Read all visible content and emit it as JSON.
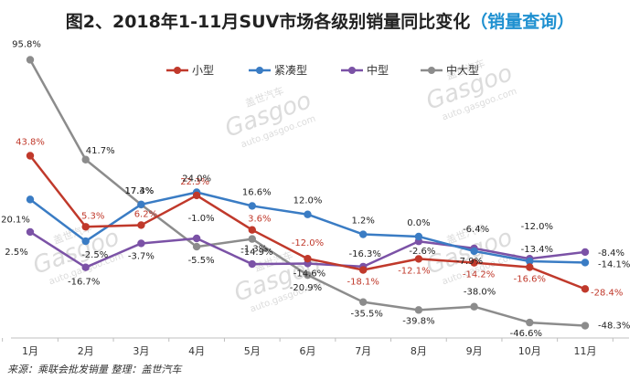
{
  "chart_data": {
    "type": "line",
    "title": "图2、2018年1-11月SUV市场各级别销量同比变化",
    "title_link": "（销量查询）",
    "categories": [
      "1月",
      "2月",
      "3月",
      "4月",
      "5月",
      "6月",
      "7月",
      "8月",
      "9月",
      "10月",
      "11月"
    ],
    "ylim": [
      -52,
      100
    ],
    "grid": false,
    "legend_position": "top",
    "series": [
      {
        "name": "小型",
        "color": "#c0392b",
        "values": [
          43.8,
          5.3,
          6.2,
          22.3,
          3.6,
          -12.0,
          -18.1,
          -12.1,
          -14.2,
          -16.6,
          -28.4
        ],
        "labels": [
          "43.8%",
          "5.3%",
          "6.2%",
          "22.3%",
          "3.6%",
          "-12.0%",
          "-18.1%",
          "-12.1%",
          "-14.2%",
          "-16.6%",
          "-28.4%"
        ]
      },
      {
        "name": "紧凑型",
        "color": "#3a7cc4",
        "values": [
          20.1,
          -2.5,
          17.4,
          24.0,
          16.6,
          12.0,
          1.2,
          0.0,
          -7.9,
          -13.4,
          -14.1
        ],
        "labels": [
          "20.1%",
          "-2.5%",
          "17.4%",
          "24.0%",
          "16.6%",
          "12.0%",
          "1.2%",
          "0.0%",
          "-7.9%",
          "-13.4%",
          "-14.1%"
        ]
      },
      {
        "name": "中型",
        "color": "#7b52a6",
        "values": [
          2.5,
          -16.7,
          -3.7,
          -1.0,
          -14.9,
          -14.6,
          -16.3,
          -2.6,
          -6.4,
          -12.0,
          -8.4
        ],
        "labels": [
          "2.5%",
          "-16.7%",
          "-3.7%",
          "-1.0%",
          "-14.9%",
          "-14.6%",
          "-16.3%",
          "-2.6%",
          "-6.4%",
          "-12.0%",
          "-8.4%"
        ]
      },
      {
        "name": "中大型",
        "color": "#8c8c8c",
        "values": [
          95.8,
          41.7,
          17.3,
          -5.5,
          -1.3,
          -20.9,
          -35.5,
          -39.8,
          -38.0,
          -46.6,
          -48.3
        ],
        "labels": [
          "95.8%",
          "41.7%",
          "17.3%",
          "-5.5%",
          "-1.3%",
          "-20.9%",
          "-35.5%",
          "-39.8%",
          "-38.0%",
          "-46.6%",
          "-48.3%"
        ]
      }
    ]
  },
  "source_note": "来源：乘联会批发销量   整理：盖世汽车",
  "watermark": {
    "brand": "Gasgoo",
    "cn": "盖世汽车",
    "url": "auto.gasgoo.com"
  }
}
